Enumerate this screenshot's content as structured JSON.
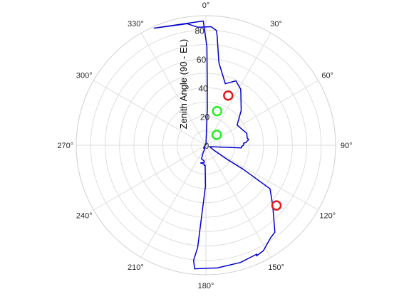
{
  "chart_data": {
    "type": "scatter",
    "subtype": "polar",
    "theta_zero": "top",
    "theta_direction": "clockwise",
    "rlim": [
      0,
      90
    ],
    "r_axis_label": "Zenith Angle (90 - EL)",
    "r_ticks": [
      0,
      20,
      40,
      60,
      80
    ],
    "theta_ticks": [
      0,
      30,
      60,
      90,
      120,
      150,
      180,
      210,
      240,
      270,
      300,
      330
    ],
    "theta_tick_labels": [
      "0°",
      "30°",
      "60°",
      "90°",
      "120°",
      "150°",
      "180°",
      "210°",
      "240°",
      "270°",
      "300°",
      "330°"
    ],
    "grid": true,
    "colors": {
      "grid": "#dedede",
      "outline": "#0000cc",
      "red": "#e31a1c",
      "green": "#22ee22",
      "text": "#262626"
    },
    "outline": {
      "name": "",
      "points": [
        [
          336.0,
          89.0
        ],
        [
          351.2,
          85.4
        ],
        [
          356.2,
          82.1
        ],
        [
          2.5,
          82.4
        ],
        [
          5.2,
          80.1
        ],
        [
          5.9,
          76.1
        ],
        [
          8.9,
          58.1
        ],
        [
          10.2,
          55.5
        ],
        [
          17.5,
          44.8
        ],
        [
          18.3,
          45.2
        ],
        [
          25.0,
          49.3
        ],
        [
          31.8,
          45.8
        ],
        [
          33.3,
          44.1
        ],
        [
          45.4,
          34.4
        ],
        [
          57.1,
          25.8
        ],
        [
          73.6,
          29.5
        ],
        [
          80.2,
          29.1
        ],
        [
          82.5,
          29.9
        ],
        [
          85.5,
          28.1
        ],
        [
          85.8,
          28.1
        ],
        [
          86.6,
          27.0
        ],
        [
          86.7,
          26.2
        ],
        [
          89.2,
          26.3
        ],
        [
          89.4,
          26.3
        ],
        [
          92.3,
          24.7
        ],
        [
          94.4,
          24.7
        ],
        [
          98.4,
          8.6
        ],
        [
          111.8,
          2.7
        ],
        [
          121.8,
          6.3
        ],
        [
          123.7,
          17.6
        ],
        [
          122.8,
          31.2
        ],
        [
          124.2,
          53.8
        ],
        [
          132.2,
          62.6
        ],
        [
          141.6,
          77.1
        ],
        [
          145.0,
          78.4
        ],
        [
          151.4,
          83.4
        ],
        [
          155.4,
          84.5
        ],
        [
          155.0,
          83.5
        ],
        [
          163.6,
          84.9
        ],
        [
          174.7,
          85.6
        ],
        [
          180.0,
          85.5
        ],
        [
          185.2,
          86.2
        ],
        [
          186.1,
          80.4
        ],
        [
          184.6,
          71.3
        ],
        [
          180.6,
          28.3
        ],
        [
          182.2,
          14.0
        ],
        [
          184.8,
          14.0
        ],
        [
          185.6,
          13.0
        ],
        [
          196.4,
          12.9
        ],
        [
          185.8,
          12.0
        ],
        [
          185.9,
          11.1
        ],
        [
          197.9,
          10.0
        ],
        [
          200.2,
          5.4
        ],
        [
          198.4,
          3.2
        ],
        [
          221.6,
          1.4
        ],
        [
          239.3,
          1.0
        ],
        [
          215.6,
          1.8
        ],
        [
          219.4,
          2.6
        ],
        [
          276.2,
          0.5
        ],
        [
          5.2,
          0.5
        ],
        [
          2.6,
          2.2
        ],
        [
          2.3,
          26.3
        ],
        [
          1.7,
          31.6
        ],
        [
          1.4,
          40.7
        ],
        [
          0.6,
          68.4
        ],
        [
          358.8,
          86.3
        ],
        [
          336.0,
          89.0
        ]
      ]
    },
    "markers": [
      {
        "color": "red",
        "theta": 24.2,
        "r": 37.8
      },
      {
        "color": "red",
        "theta": 130.5,
        "r": 64.4
      },
      {
        "color": "green",
        "theta": 18.2,
        "r": 24.9
      },
      {
        "color": "green",
        "theta": 46.1,
        "r": 10.4
      }
    ]
  }
}
